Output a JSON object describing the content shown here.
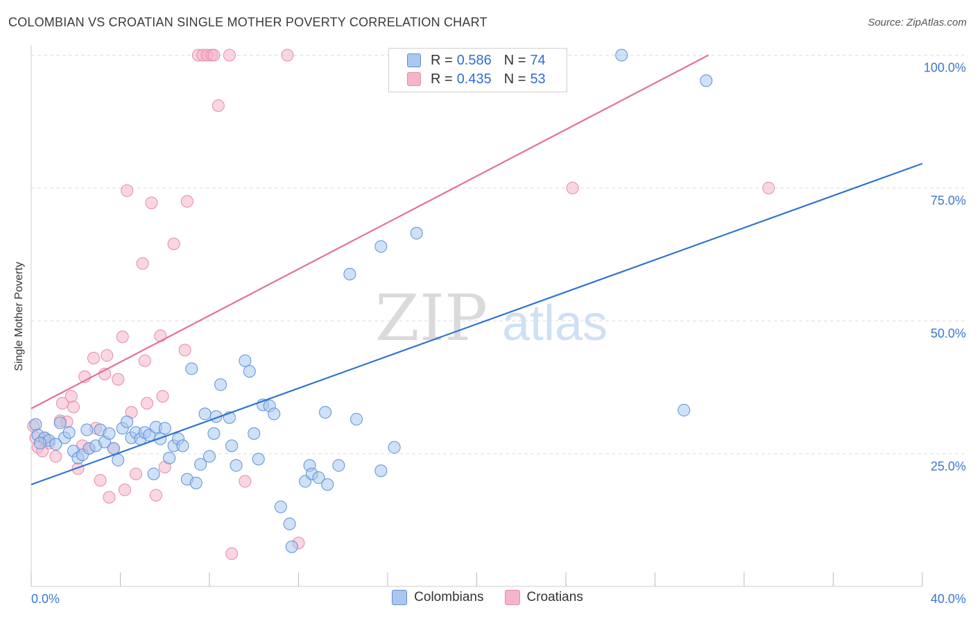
{
  "title": "COLOMBIAN VS CROATIAN SINGLE MOTHER POVERTY CORRELATION CHART",
  "source": "Source: ZipAtlas.com",
  "watermark": {
    "zip": "ZIP",
    "atlas": "atlas"
  },
  "colors": {
    "blue_fill": "#a8c8f0",
    "blue_stroke": "#5b8fd6",
    "blue_line": "#2f73d0",
    "pink_fill": "#f5b5c8",
    "pink_stroke": "#e58aa8",
    "pink_line": "#e4709a",
    "tick_label_blue": "#3a78cf",
    "grid": "#dcdcdc"
  },
  "legend": {
    "rows": [
      {
        "r_label": "R = ",
        "r_value": "0.586",
        "n_label": "N = ",
        "n_value": "74",
        "series": "Colombians"
      },
      {
        "r_label": "R = ",
        "r_value": "0.435",
        "n_label": "N = ",
        "n_value": "53",
        "series": "Croatians"
      }
    ]
  },
  "bottom_legend": [
    "Colombians",
    "Croatians"
  ],
  "chart_data": {
    "type": "scatter",
    "title": "COLOMBIAN VS CROATIAN SINGLE MOTHER POVERTY CORRELATION CHART",
    "xlabel": "",
    "ylabel": "Single Mother Poverty",
    "xlim": [
      0,
      40
    ],
    "ylim": [
      0,
      105
    ],
    "x_tick_labels": [
      "0.0%",
      "40.0%"
    ],
    "y_ticks": [
      25,
      50,
      75,
      100
    ],
    "y_tick_labels": [
      "25.0%",
      "50.0%",
      "75.0%",
      "100.0%"
    ],
    "grid": true,
    "legend_position": "top-center",
    "series": [
      {
        "name": "Colombians",
        "color": "#a8c8f0",
        "trend": {
          "x": [
            0,
            40
          ],
          "y": [
            19.2,
            79.6
          ]
        },
        "points": [
          [
            0.2,
            30.5
          ],
          [
            0.3,
            28.5
          ],
          [
            0.6,
            28.0
          ],
          [
            0.8,
            27.5
          ],
          [
            1.3,
            30.8
          ],
          [
            1.5,
            28.0
          ],
          [
            1.7,
            29.0
          ],
          [
            1.9,
            25.5
          ],
          [
            2.1,
            24.2
          ],
          [
            2.3,
            24.8
          ],
          [
            2.5,
            29.5
          ],
          [
            2.6,
            26.0
          ],
          [
            2.9,
            26.5
          ],
          [
            3.1,
            29.5
          ],
          [
            3.3,
            27.2
          ],
          [
            3.5,
            28.8
          ],
          [
            3.7,
            26.0
          ],
          [
            3.9,
            23.8
          ],
          [
            4.1,
            29.8
          ],
          [
            4.3,
            31.0
          ],
          [
            4.5,
            28.0
          ],
          [
            4.7,
            29.0
          ],
          [
            4.9,
            27.8
          ],
          [
            5.1,
            29.0
          ],
          [
            5.3,
            28.5
          ],
          [
            5.5,
            21.2
          ],
          [
            5.6,
            30.0
          ],
          [
            5.8,
            27.8
          ],
          [
            6.0,
            29.8
          ],
          [
            6.2,
            24.2
          ],
          [
            6.4,
            26.5
          ],
          [
            6.6,
            27.8
          ],
          [
            6.8,
            26.5
          ],
          [
            7.0,
            20.2
          ],
          [
            7.2,
            41.0
          ],
          [
            7.4,
            19.5
          ],
          [
            7.6,
            23.0
          ],
          [
            7.8,
            32.5
          ],
          [
            8.0,
            24.5
          ],
          [
            8.2,
            28.8
          ],
          [
            8.3,
            32.0
          ],
          [
            8.5,
            38.0
          ],
          [
            8.9,
            31.8
          ],
          [
            9.0,
            26.5
          ],
          [
            9.2,
            22.8
          ],
          [
            9.6,
            42.5
          ],
          [
            9.8,
            40.5
          ],
          [
            10.0,
            28.8
          ],
          [
            10.2,
            24.0
          ],
          [
            10.4,
            34.2
          ],
          [
            10.7,
            34.0
          ],
          [
            10.9,
            32.5
          ],
          [
            11.2,
            15.0
          ],
          [
            11.6,
            11.8
          ],
          [
            11.7,
            7.5
          ],
          [
            12.3,
            19.8
          ],
          [
            12.5,
            22.8
          ],
          [
            12.6,
            21.2
          ],
          [
            12.9,
            20.5
          ],
          [
            13.2,
            32.8
          ],
          [
            13.3,
            19.2
          ],
          [
            13.8,
            22.8
          ],
          [
            14.3,
            58.8
          ],
          [
            14.6,
            31.5
          ],
          [
            15.7,
            64.0
          ],
          [
            15.7,
            21.8
          ],
          [
            16.3,
            26.2
          ],
          [
            17.3,
            66.5
          ],
          [
            22.5,
            100.0
          ],
          [
            26.5,
            100.0
          ],
          [
            30.3,
            95.2
          ],
          [
            29.3,
            33.2
          ],
          [
            0.4,
            27.0
          ],
          [
            1.1,
            26.8
          ]
        ]
      },
      {
        "name": "Croatians",
        "color": "#f5b5c8",
        "trend": {
          "x": [
            0,
            30.4
          ],
          "y": [
            33.5,
            100.0
          ]
        },
        "points": [
          [
            0.1,
            30.2
          ],
          [
            0.2,
            28.0
          ],
          [
            0.3,
            26.2
          ],
          [
            0.5,
            25.5
          ],
          [
            0.6,
            27.8
          ],
          [
            0.8,
            27.0
          ],
          [
            1.1,
            24.5
          ],
          [
            1.3,
            31.2
          ],
          [
            1.4,
            34.5
          ],
          [
            1.6,
            31.0
          ],
          [
            1.8,
            35.8
          ],
          [
            1.9,
            33.8
          ],
          [
            2.1,
            22.2
          ],
          [
            2.3,
            26.5
          ],
          [
            2.4,
            39.5
          ],
          [
            2.6,
            26.0
          ],
          [
            2.8,
            43.0
          ],
          [
            2.9,
            29.8
          ],
          [
            3.1,
            20.0
          ],
          [
            3.3,
            40.0
          ],
          [
            3.4,
            43.5
          ],
          [
            3.5,
            16.8
          ],
          [
            3.7,
            26.0
          ],
          [
            3.9,
            39.0
          ],
          [
            4.1,
            47.0
          ],
          [
            4.2,
            18.2
          ],
          [
            4.3,
            74.5
          ],
          [
            4.5,
            32.8
          ],
          [
            4.7,
            21.2
          ],
          [
            5.0,
            60.8
          ],
          [
            5.1,
            42.5
          ],
          [
            5.2,
            34.5
          ],
          [
            5.4,
            72.2
          ],
          [
            5.6,
            17.2
          ],
          [
            5.8,
            47.2
          ],
          [
            5.9,
            35.8
          ],
          [
            6.0,
            22.5
          ],
          [
            6.4,
            64.5
          ],
          [
            6.9,
            44.5
          ],
          [
            7.0,
            72.5
          ],
          [
            7.5,
            100.0
          ],
          [
            7.7,
            100.0
          ],
          [
            7.9,
            100.0
          ],
          [
            8.1,
            100.0
          ],
          [
            8.2,
            100.0
          ],
          [
            8.4,
            90.5
          ],
          [
            8.9,
            100.0
          ],
          [
            9.0,
            6.2
          ],
          [
            9.6,
            19.8
          ],
          [
            11.5,
            100.0
          ],
          [
            12.0,
            8.2
          ],
          [
            24.3,
            75.0
          ],
          [
            33.1,
            75.0
          ]
        ]
      }
    ]
  }
}
